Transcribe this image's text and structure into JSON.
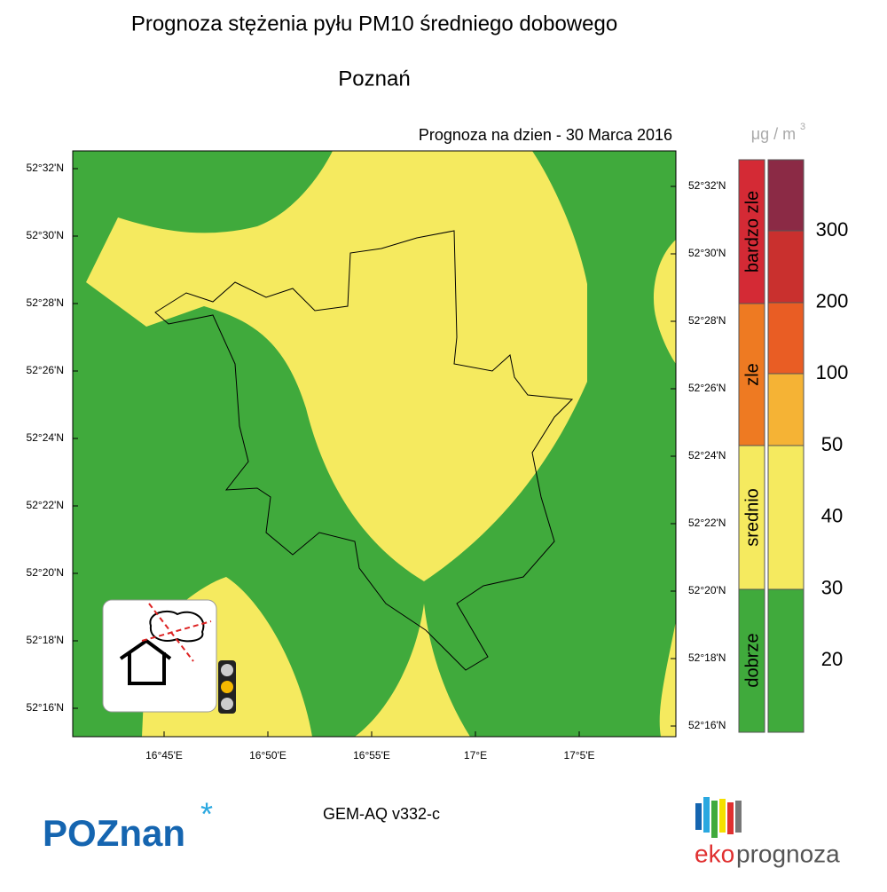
{
  "header": {
    "title": "Prognoza stężenia pyłu PM10 średniego dobowego",
    "subtitle": "Poznań",
    "date": "Prognoza na dzien -  30 Marca 2016"
  },
  "map": {
    "lat_labels_left": [
      "52°32'N",
      "52°30'N",
      "52°28'N",
      "52°26'N",
      "52°24'N",
      "52°22'N",
      "52°20'N",
      "52°18'N",
      "52°16'N"
    ],
    "lat_labels_right": [
      "52°32'N",
      "52°30'N",
      "52°28'N",
      "52°26'N",
      "52°24'N",
      "52°22'N",
      "52°20'N",
      "52°18'N",
      "52°16'N"
    ],
    "lon_labels": [
      "16°45'E",
      "16°50'E",
      "16°55'E",
      "17°E",
      "17°5'E"
    ]
  },
  "legend": {
    "unit": "μg / m",
    "unit_exponent": "3",
    "categories": [
      "bardzo zle",
      "zle",
      "srednio",
      "dobrze"
    ],
    "scale": [
      "300",
      "200",
      "100",
      "50",
      "40",
      "30",
      "20"
    ]
  },
  "footer": {
    "model": "GEM-AQ v332-c",
    "logo_left": "POZnan",
    "logo_right_a": "eko",
    "logo_right_b": "prognoza"
  }
}
